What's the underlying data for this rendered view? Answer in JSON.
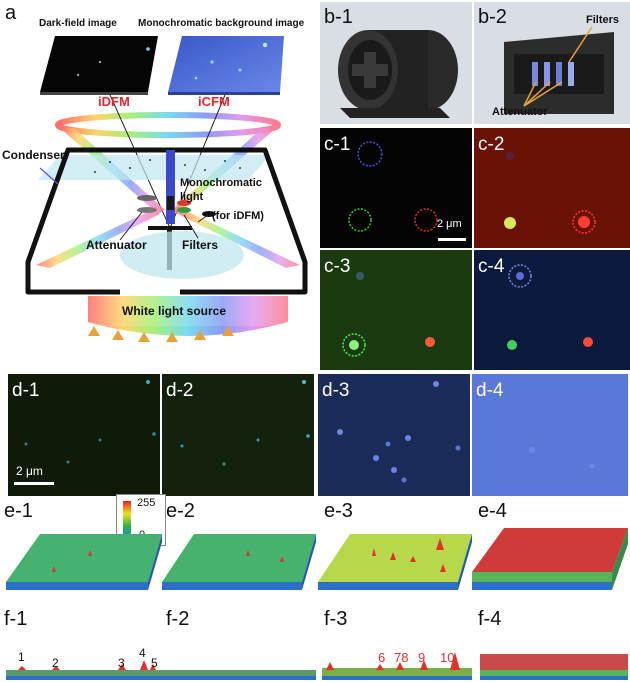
{
  "panel_a": {
    "label": "a",
    "dark_field_label": "Dark-field image",
    "mono_bg_label": "Monochromatic background image",
    "idfm": "iDFM",
    "icfm": "iCFM",
    "condenser": "Condenser",
    "monochromatic_light": "Monochromatic light",
    "for_idfm": "(for iDFM)",
    "attenuator": "Attenuator",
    "filters": "Filters",
    "white_light_source": "White light source"
  },
  "panel_b": {
    "b1_label": "b-1",
    "b2_label": "b-2",
    "filters": "Filters",
    "attenuator": "Attenuator"
  },
  "panel_c": {
    "labels": [
      "c-1",
      "c-2",
      "c-3",
      "c-4"
    ],
    "scale": "2 μm"
  },
  "panel_d": {
    "labels": [
      "d-1",
      "d-2",
      "d-3",
      "d-4"
    ],
    "scale": "2 μm"
  },
  "panel_e": {
    "labels": [
      "e-1",
      "e-2",
      "e-3",
      "e-4"
    ],
    "colorbar_max": "255",
    "colorbar_min": "0"
  },
  "panel_f": {
    "labels": [
      "f-1",
      "f-2",
      "f-3",
      "f-4"
    ],
    "peak_labels_f1": [
      "1",
      "2",
      "3",
      "4",
      "5"
    ],
    "peak_labels_f3": [
      "6",
      "78",
      "9",
      "10"
    ]
  },
  "colors": {
    "accent_red": "#e0322b",
    "iDFM_red": "#e8242a"
  }
}
